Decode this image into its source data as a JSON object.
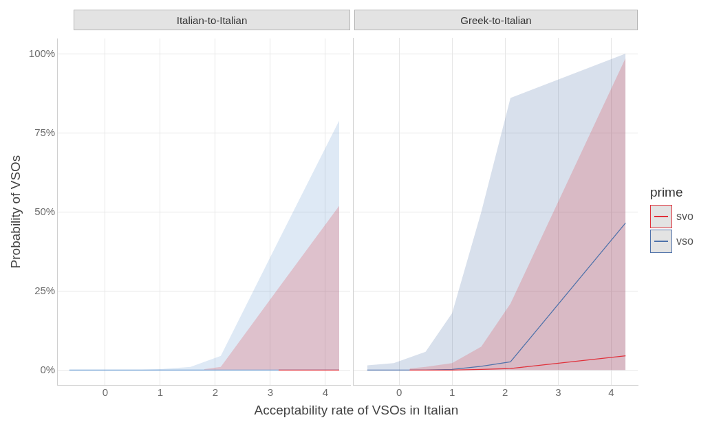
{
  "chart_data": [
    {
      "type": "line",
      "title": "Italian-to-Italian",
      "xlabel": "Acceptability rate of VSOs in Italian",
      "ylabel": "Probability of VSOs",
      "xlim": [
        -0.87,
        4.45
      ],
      "ylim": [
        -4.7,
        105
      ],
      "xticks": [
        0,
        1,
        2,
        3,
        4
      ],
      "yticks": [
        {
          "value": 0,
          "label": "0%"
        },
        {
          "value": 25,
          "label": "25%"
        },
        {
          "value": 50,
          "label": "50%"
        },
        {
          "value": 75,
          "label": "75%"
        },
        {
          "value": 100,
          "label": "100%"
        }
      ],
      "grid": true,
      "series": [
        {
          "color": "#e0303a",
          "x": [
            1.8,
            2.1,
            3.15,
            4.25
          ],
          "values": [
            null,
            null,
            0,
            0
          ],
          "lower": [
            0,
            0,
            0,
            0
          ],
          "upper": [
            0.3,
            1,
            26,
            52
          ]
        },
        {
          "color": "#6a9bd1",
          "x": [
            -0.65,
            0,
            0.5,
            1,
            1.55,
            2.1,
            3.15,
            4.25
          ],
          "values": [
            0,
            0,
            0,
            0,
            0,
            0,
            0,
            0
          ],
          "lower": [
            0,
            0,
            0,
            0,
            0,
            0,
            0,
            0
          ],
          "upper": [
            0,
            0,
            0,
            0.3,
            1,
            4.5,
            41,
            79
          ]
        }
      ]
    },
    {
      "type": "line",
      "title": "Greek-to-Italian",
      "xlim": [
        -0.87,
        4.5
      ],
      "ylim": [
        -4.7,
        105
      ],
      "xticks": [
        0,
        1,
        2,
        3,
        4
      ],
      "yticks": [
        0,
        25,
        50,
        75,
        100
      ],
      "tick_labels": "x",
      "grid": true,
      "legend": "right",
      "legend_title": "prime",
      "series": [
        {
          "name": "svo",
          "color": "#e0303a",
          "x": [
            0.2,
            0.5,
            1,
            1.55,
            2.1,
            4.27
          ],
          "values": [
            0,
            0,
            0,
            0.2,
            0.5,
            4.5
          ],
          "lower": [
            0,
            0,
            0,
            0,
            0,
            0
          ],
          "upper": [
            0.5,
            1,
            2.2,
            7.4,
            21,
            98.6
          ]
        },
        {
          "name": "vso",
          "color": "#4f72aa",
          "x": [
            -0.6,
            -0.1,
            0.5,
            1,
            1.55,
            2.1,
            4.27
          ],
          "values": [
            0,
            0,
            0,
            0.2,
            1.2,
            2.6,
            46.5
          ],
          "lower": [
            0,
            0,
            0,
            0,
            0,
            0,
            0
          ],
          "upper": [
            1.5,
            2.2,
            5.8,
            18,
            50,
            86,
            100
          ]
        }
      ]
    }
  ]
}
